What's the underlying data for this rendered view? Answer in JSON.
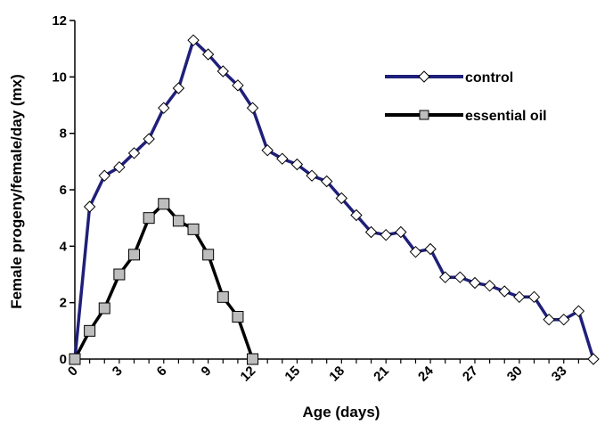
{
  "chart_data": {
    "type": "line",
    "xlabel": "Age (days)",
    "ylabel": "Female progeny/female/day (mx)",
    "xlim": [
      0,
      35
    ],
    "ylim": [
      0,
      12
    ],
    "x_ticks": [
      0,
      3,
      6,
      9,
      12,
      15,
      18,
      21,
      24,
      27,
      30,
      33
    ],
    "y_ticks": [
      0,
      2,
      4,
      6,
      8,
      10,
      12
    ],
    "legend_position": "top-right",
    "series": [
      {
        "name": "control",
        "color": "#1f1f7a",
        "marker": "diamond",
        "x": [
          0,
          1,
          2,
          3,
          4,
          5,
          6,
          7,
          8,
          9,
          10,
          11,
          12,
          13,
          14,
          15,
          16,
          17,
          18,
          19,
          20,
          21,
          22,
          23,
          24,
          25,
          26,
          27,
          28,
          29,
          30,
          31,
          32,
          33,
          34,
          35
        ],
        "y": [
          0,
          5.4,
          6.5,
          6.8,
          7.3,
          7.8,
          8.9,
          9.6,
          11.3,
          10.8,
          10.2,
          9.7,
          8.9,
          7.4,
          7.1,
          6.9,
          6.5,
          6.3,
          5.7,
          5.1,
          4.5,
          4.4,
          4.5,
          3.8,
          3.9,
          2.9,
          2.9,
          2.7,
          2.6,
          2.4,
          2.2,
          2.2,
          1.4,
          1.4,
          1.7,
          0
        ]
      },
      {
        "name": "essential oil",
        "color": "#000000",
        "marker": "square",
        "x": [
          0,
          1,
          2,
          3,
          4,
          5,
          6,
          7,
          8,
          9,
          10,
          11,
          12
        ],
        "y": [
          0,
          1.0,
          1.8,
          3.0,
          3.7,
          5.0,
          5.5,
          4.9,
          4.6,
          3.7,
          2.2,
          1.5,
          0
        ]
      }
    ]
  }
}
